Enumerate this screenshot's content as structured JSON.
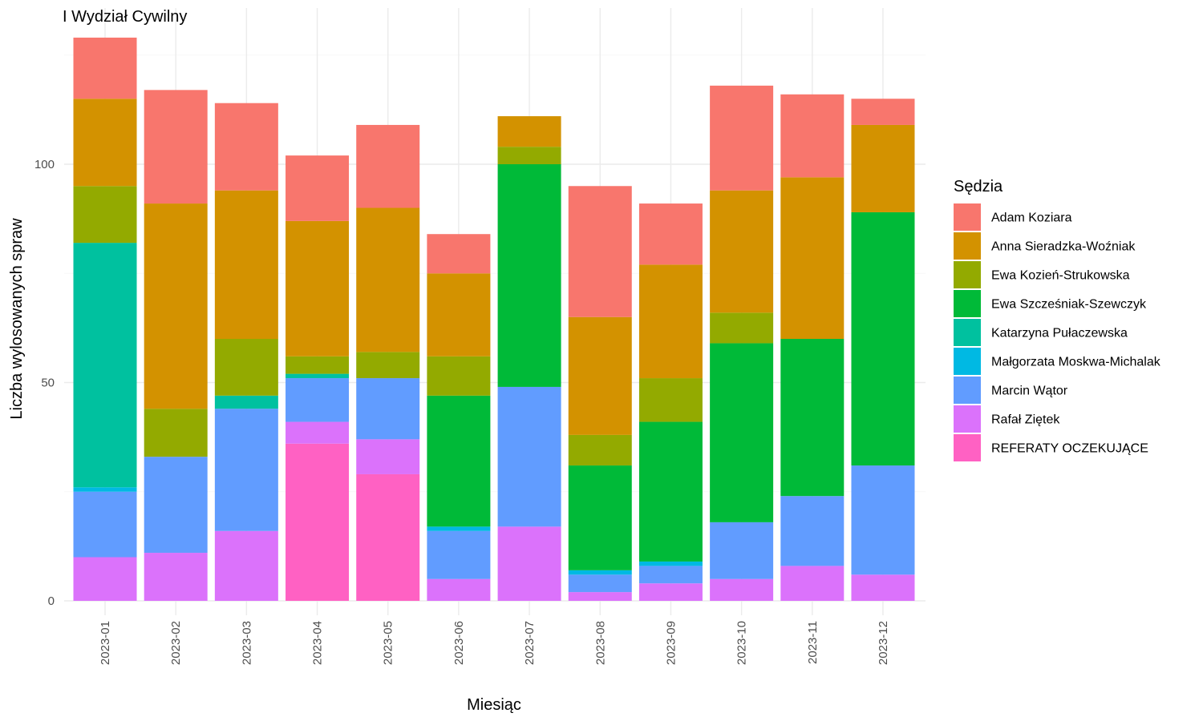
{
  "chart_data": {
    "type": "bar",
    "stacked": true,
    "title": "I Wydział Cywilny",
    "xlabel": "Miesiąc",
    "ylabel": "Liczba wylosowanych spraw",
    "ylim": [
      0,
      130
    ],
    "y_ticks": [
      0,
      50,
      100
    ],
    "grid": true,
    "legend_title": "Sędzia",
    "legend_position": "right",
    "categories": [
      "2023-01",
      "2023-02",
      "2023-03",
      "2023-04",
      "2023-05",
      "2023-06",
      "2023-07",
      "2023-08",
      "2023-09",
      "2023-10",
      "2023-11",
      "2023-12"
    ],
    "series": [
      {
        "name": "Adam Koziara",
        "color": "#F8766D",
        "values": [
          14,
          26,
          20,
          15,
          19,
          9,
          0,
          30,
          14,
          24,
          19,
          6
        ]
      },
      {
        "name": "Anna Sieradzka-Woźniak",
        "color": "#D39200",
        "values": [
          20,
          47,
          34,
          31,
          33,
          19,
          7,
          27,
          26,
          28,
          37,
          20
        ]
      },
      {
        "name": "Ewa Kozień-Strukowska",
        "color": "#93AA00",
        "values": [
          13,
          11,
          13,
          4,
          6,
          9,
          4,
          7,
          10,
          7,
          0,
          0
        ]
      },
      {
        "name": "Ewa Szcześniak-Szewczyk",
        "color": "#00BA38",
        "values": [
          0,
          0,
          0,
          0,
          0,
          30,
          51,
          24,
          32,
          41,
          36,
          58
        ]
      },
      {
        "name": "Katarzyna Pułaczewska",
        "color": "#00C19F",
        "values": [
          56,
          0,
          3,
          1,
          0,
          0,
          0,
          0,
          0,
          0,
          0,
          0
        ]
      },
      {
        "name": "Małgorzata Moskwa-Michalak",
        "color": "#00B9E3",
        "values": [
          1,
          0,
          0,
          0,
          0,
          1,
          0,
          1,
          1,
          0,
          0,
          0
        ]
      },
      {
        "name": "Marcin Wątor",
        "color": "#619CFF",
        "values": [
          15,
          22,
          28,
          10,
          14,
          11,
          32,
          4,
          4,
          13,
          16,
          25
        ]
      },
      {
        "name": "Rafał Ziętek",
        "color": "#DB72FB",
        "values": [
          10,
          11,
          16,
          5,
          8,
          5,
          17,
          2,
          4,
          5,
          8,
          6
        ]
      },
      {
        "name": "REFERATY OCZEKUJĄCE",
        "color": "#FF61C3",
        "values": [
          0,
          0,
          0,
          36,
          29,
          0,
          0,
          0,
          0,
          0,
          0,
          0
        ]
      }
    ]
  }
}
